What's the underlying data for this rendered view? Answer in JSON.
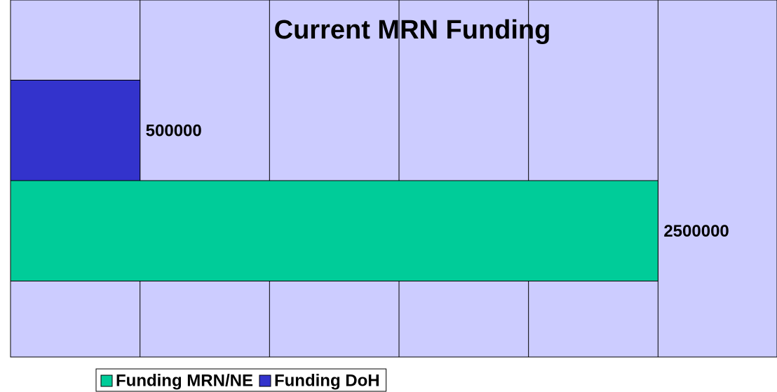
{
  "chart_data": {
    "type": "barh",
    "title": "Current MRN Funding",
    "categories": [
      null
    ],
    "series": [
      {
        "name": "Funding MRN/NE",
        "color": "#00cc99",
        "values": [
          2500000
        ]
      },
      {
        "name": "Funding DoH",
        "color": "#3333cc",
        "values": [
          500000
        ]
      }
    ],
    "xlim": [
      0,
      3000000
    ],
    "xticks": [
      0,
      500000,
      1000000,
      1500000,
      2000000,
      2500000
    ],
    "grid": true,
    "legend": "bottom",
    "plot_background": "#ccccff"
  }
}
